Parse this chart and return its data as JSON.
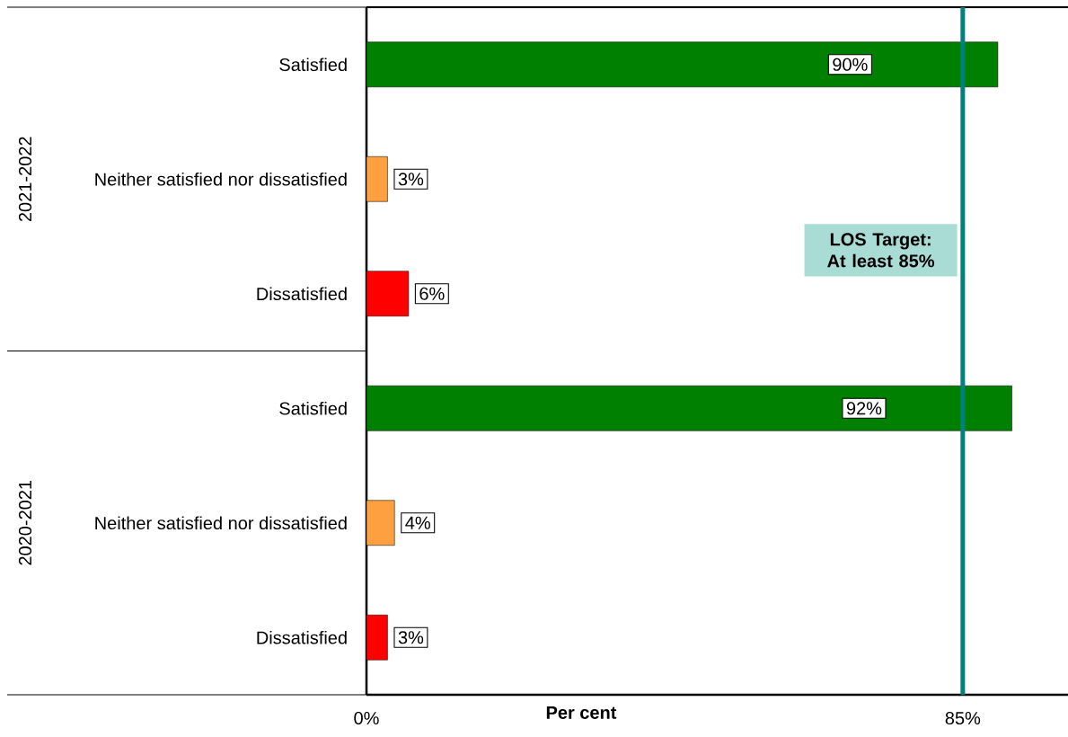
{
  "chart_data": {
    "type": "bar",
    "orientation": "horizontal",
    "categories": [
      "Satisfied",
      "Neither satisfied nor dissatisfied",
      "Dissatisfied",
      "Satisfied",
      "Neither satisfied nor dissatisfied",
      "Dissatisfied"
    ],
    "values": [
      90,
      3,
      6,
      92,
      4,
      3
    ],
    "colors": [
      "#008000",
      "#ffa040",
      "#ff0000",
      "#008000",
      "#ffa040",
      "#ff0000"
    ],
    "value_labels": [
      "90%",
      "3%",
      "6%",
      "92%",
      "4%",
      "3%"
    ],
    "xlabel": "Per cent",
    "xlim": [
      0,
      100
    ],
    "xticks": [
      {
        "value": 0,
        "label": "0%"
      },
      {
        "value": 85,
        "label": "85%"
      }
    ],
    "ref_lines": [
      {
        "axis": "x",
        "value": 85,
        "label": "LOS Target: At least 85%",
        "color": "#008080"
      }
    ],
    "annotations": [
      "2021-2022",
      "2020-2021"
    ]
  }
}
